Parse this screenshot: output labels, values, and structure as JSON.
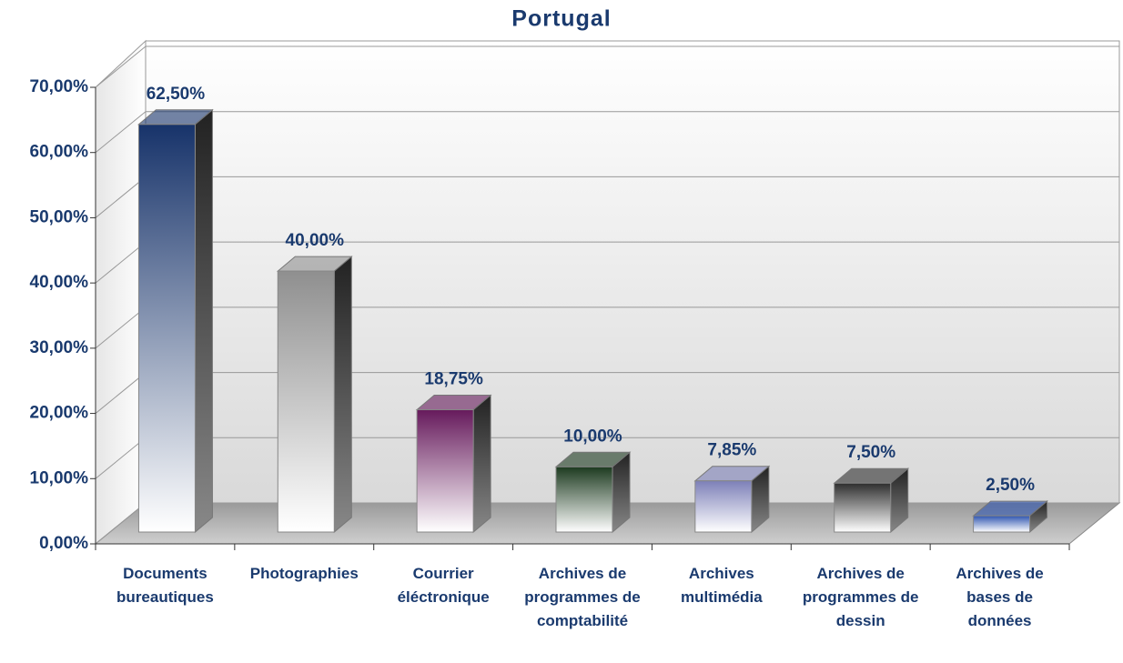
{
  "chart_data": {
    "type": "bar3d",
    "title": "Portugal",
    "categories": [
      "Documents bureautiques",
      "Photographies",
      "Courrier éléctronique",
      "Archives de programmes de comptabilité",
      "Archives multimédia",
      "Archives de programmes de dessin",
      "Archives de bases de données"
    ],
    "series": [
      {
        "name": null,
        "colors": [
          "#17336a",
          "#8f8f8f",
          "#661a5c",
          "#1c3a1f",
          "#7d80b8",
          "#2e2e2e",
          "#2f55b0"
        ],
        "values": [
          62.5,
          40,
          18.75,
          10,
          7.85,
          7.5,
          2.5
        ],
        "value_labels": [
          "62,50%",
          "40,00%",
          "18,75%",
          "10,00%",
          "7,85%",
          "7,50%",
          "2,50%"
        ]
      }
    ],
    "ylim": [
      0,
      70
    ],
    "yticks": [
      {
        "value": 0,
        "label": "0,00%"
      },
      {
        "value": 10,
        "label": "10,00%"
      },
      {
        "value": 20,
        "label": "20,00%"
      },
      {
        "value": 30,
        "label": "30,00%"
      },
      {
        "value": 40,
        "label": "40,00%"
      },
      {
        "value": 50,
        "label": "50,00%"
      },
      {
        "value": 60,
        "label": "60,00%"
      },
      {
        "value": 70,
        "label": "70,00%"
      }
    ],
    "grid": true
  }
}
